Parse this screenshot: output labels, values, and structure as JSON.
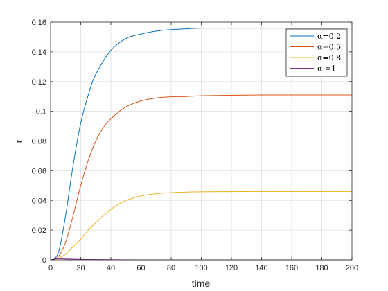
{
  "chart_data": {
    "type": "line",
    "title": "",
    "xlabel": "time",
    "ylabel": "r",
    "xlim": [
      0,
      200
    ],
    "ylim": [
      0,
      0.16
    ],
    "xticks": [
      0,
      20,
      40,
      60,
      80,
      100,
      120,
      140,
      160,
      180,
      200
    ],
    "yticks": [
      0,
      0.02,
      0.04,
      0.06,
      0.08,
      0.1,
      0.12,
      0.14,
      0.16
    ],
    "ytick_labels": [
      "0",
      "0.02",
      "0.04",
      "0.06",
      "0.08",
      "0.1",
      "0.12",
      "0.14",
      "0.16"
    ],
    "grid": true,
    "legend_position": "top-right",
    "series": [
      {
        "name": "α=0.2",
        "color": "#0072bd",
        "x": [
          0,
          3,
          6,
          10,
          15,
          20,
          25,
          30,
          40,
          50,
          60,
          70,
          80,
          90,
          100,
          120,
          140,
          160,
          180,
          200
        ],
        "y": [
          0,
          0.001,
          0.008,
          0.03,
          0.064,
          0.092,
          0.111,
          0.125,
          0.141,
          0.149,
          0.152,
          0.154,
          0.155,
          0.1555,
          0.156,
          0.156,
          0.156,
          0.156,
          0.156,
          0.156
        ]
      },
      {
        "name": "α=0.5",
        "color": "#d95319",
        "x": [
          0,
          5,
          10,
          15,
          20,
          25,
          30,
          35,
          40,
          50,
          60,
          70,
          80,
          90,
          100,
          120,
          140,
          160,
          180,
          200
        ],
        "y": [
          0,
          0.002,
          0.012,
          0.03,
          0.05,
          0.067,
          0.08,
          0.089,
          0.095,
          0.103,
          0.107,
          0.109,
          0.1098,
          0.11,
          0.1105,
          0.1108,
          0.111,
          0.111,
          0.111,
          0.111
        ]
      },
      {
        "name": "α=0.8",
        "color": "#edb120",
        "x": [
          0,
          5,
          10,
          15,
          20,
          25,
          30,
          40,
          50,
          60,
          70,
          80,
          90,
          100,
          120,
          140,
          160,
          180,
          200
        ],
        "y": [
          0,
          0.001,
          0.004,
          0.009,
          0.014,
          0.02,
          0.025,
          0.034,
          0.04,
          0.043,
          0.0445,
          0.0452,
          0.0456,
          0.0458,
          0.0459,
          0.046,
          0.046,
          0.046,
          0.046
        ]
      },
      {
        "name": "α =1",
        "color": "#7e2f8e",
        "x": [
          0,
          5,
          10,
          20,
          40,
          60,
          100,
          150,
          200
        ],
        "y": [
          0,
          0.0008,
          0.0006,
          0.0003,
          0.0001,
          0,
          0,
          0,
          0
        ]
      }
    ]
  }
}
